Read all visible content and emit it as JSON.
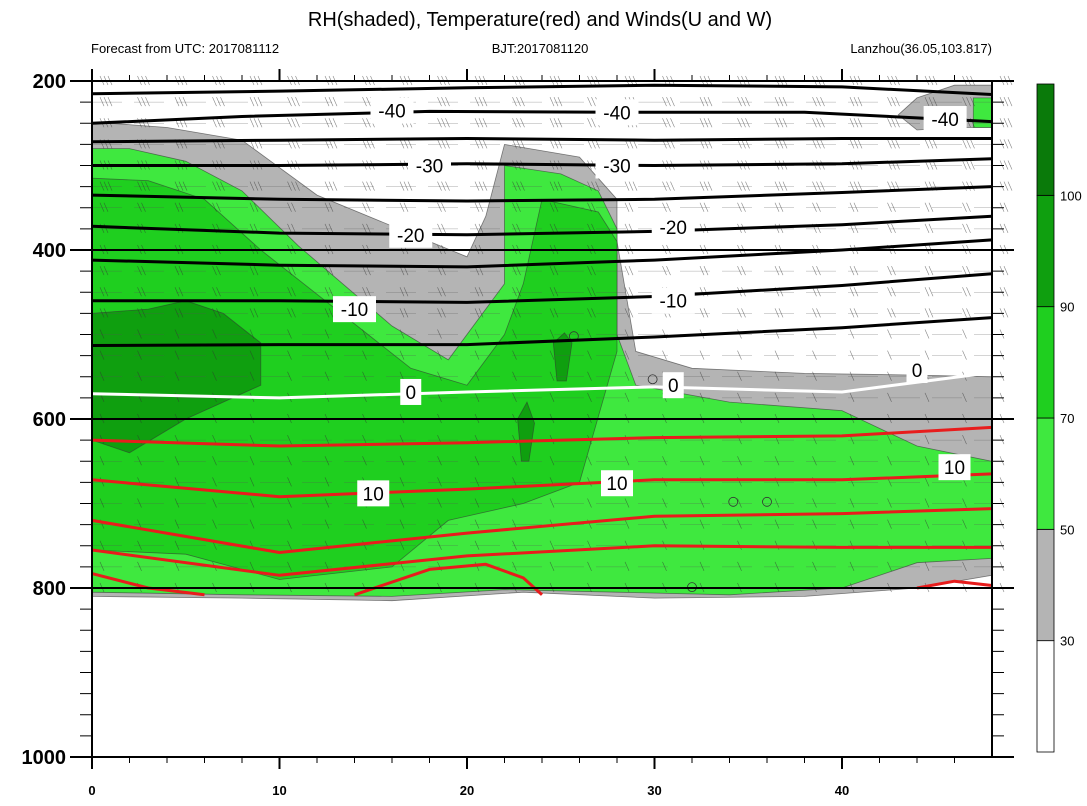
{
  "title": "RH(shaded), Temperature(red) and Winds(U and W)",
  "subtitle_left": "Forecast from UTC: 2017081112",
  "subtitle_center": "BJT:2017081120",
  "subtitle_right": "Lanzhou(36.05,103.817)",
  "colors": {
    "rh_30_50": "#b4b4b4",
    "rh_50_70": "#3fe83f",
    "rh_70_90": "#1fcf1f",
    "rh_90_100": "#0f9f0f",
    "rh_above_100": "#0a7a0a",
    "temp_above_0": "#e81c1c",
    "temp_zero": "#ffffff",
    "temp_below_0": "#000000"
  },
  "chart_data": {
    "type": "heatmap",
    "title": "RH(shaded), Temperature(red) and Winds(U and W)",
    "xlim": [
      0,
      48
    ],
    "ylim": [
      1000,
      200
    ],
    "x_ticks": [
      "0",
      "10",
      "20",
      "30",
      "40"
    ],
    "x_tick_values": [
      0,
      10,
      20,
      30,
      40
    ],
    "y_ticks": [
      "200",
      "400",
      "600",
      "800",
      "1000"
    ],
    "y_tick_values": [
      200,
      400,
      600,
      800,
      1000
    ],
    "colorbar": {
      "levels": [
        "30",
        "50",
        "70",
        "90",
        "100"
      ],
      "level_values": [
        30,
        50,
        70,
        90,
        100
      ],
      "colors": [
        "#ffffff",
        "#b4b4b4",
        "#3fe83f",
        "#1fcf1f",
        "#0f9f0f",
        "#0a7a0a"
      ]
    },
    "rh_regions": [
      {
        "name": "rh-30-50",
        "level": 30,
        "points": [
          [
            0,
            250
          ],
          [
            0,
            810
          ],
          [
            8,
            812
          ],
          [
            16,
            815
          ],
          [
            23,
            805
          ],
          [
            30,
            812
          ],
          [
            38,
            810
          ],
          [
            44,
            800
          ],
          [
            48,
            785
          ],
          [
            48,
            550
          ],
          [
            44,
            548
          ],
          [
            38,
            546
          ],
          [
            32,
            540
          ],
          [
            29,
            520
          ],
          [
            28,
            390
          ],
          [
            28,
            340
          ],
          [
            26,
            290
          ],
          [
            22,
            275
          ],
          [
            21,
            360
          ],
          [
            20,
            408
          ],
          [
            18,
            390
          ],
          [
            12,
            335
          ],
          [
            8,
            270
          ],
          [
            4,
            255
          ],
          [
            1,
            250
          ]
        ]
      },
      {
        "name": "rh-30-50-upper",
        "level": 30,
        "points": [
          [
            43,
            240
          ],
          [
            44,
            220
          ],
          [
            46,
            205
          ],
          [
            48,
            205
          ],
          [
            48,
            255
          ],
          [
            46,
            255
          ],
          [
            44,
            258
          ]
        ]
      },
      {
        "name": "rh-50-70",
        "level": 50,
        "points": [
          [
            0,
            280
          ],
          [
            0,
            805
          ],
          [
            8,
            808
          ],
          [
            16,
            810
          ],
          [
            22,
            802
          ],
          [
            28,
            805
          ],
          [
            34,
            808
          ],
          [
            40,
            800
          ],
          [
            44,
            770
          ],
          [
            48,
            765
          ],
          [
            48,
            650
          ],
          [
            44,
            632
          ],
          [
            40,
            590
          ],
          [
            34,
            580
          ],
          [
            29,
            560
          ],
          [
            28,
            500
          ],
          [
            28,
            375
          ],
          [
            27,
            330
          ],
          [
            25,
            310
          ],
          [
            22,
            300
          ],
          [
            22,
            440
          ],
          [
            19,
            530
          ],
          [
            16,
            490
          ],
          [
            11,
            395
          ],
          [
            8,
            330
          ],
          [
            5,
            295
          ],
          [
            2,
            280
          ]
        ]
      },
      {
        "name": "rh-50-70-upper",
        "level": 50,
        "points": [
          [
            47,
            220
          ],
          [
            48,
            220
          ],
          [
            48,
            255
          ],
          [
            47,
            255
          ]
        ]
      },
      {
        "name": "rh-70-90",
        "level": 70,
        "points": [
          [
            0,
            315
          ],
          [
            0,
            755
          ],
          [
            5,
            760
          ],
          [
            10,
            790
          ],
          [
            16,
            775
          ],
          [
            19,
            720
          ],
          [
            23,
            700
          ],
          [
            26,
            675
          ],
          [
            28,
            520
          ],
          [
            28,
            390
          ],
          [
            27,
            355
          ],
          [
            24,
            340
          ],
          [
            23,
            440
          ],
          [
            22,
            500
          ],
          [
            20,
            560
          ],
          [
            17,
            540
          ],
          [
            13,
            470
          ],
          [
            9,
            400
          ],
          [
            6,
            340
          ],
          [
            3,
            318
          ]
        ]
      },
      {
        "name": "rh-90-100-a",
        "level": 90,
        "points": [
          [
            0,
            475
          ],
          [
            0,
            625
          ],
          [
            2,
            640
          ],
          [
            5,
            600
          ],
          [
            9,
            560
          ],
          [
            9,
            510
          ],
          [
            7,
            475
          ],
          [
            5,
            460
          ],
          [
            3,
            470
          ]
        ]
      },
      {
        "name": "rh-90-100-b",
        "level": 90,
        "points": [
          [
            24.6,
            510
          ],
          [
            25.2,
            498
          ],
          [
            25.6,
            510
          ],
          [
            25.3,
            555
          ],
          [
            24.8,
            555
          ]
        ]
      },
      {
        "name": "rh-90-100-c",
        "level": 90,
        "points": [
          [
            22.7,
            600
          ],
          [
            23.2,
            580
          ],
          [
            23.6,
            605
          ],
          [
            23.3,
            650
          ],
          [
            22.9,
            650
          ]
        ]
      }
    ],
    "temperature_contours": [
      {
        "label": "-40",
        "value": -40,
        "points": [
          [
            0,
            215
          ],
          [
            10,
            212
          ],
          [
            20,
            208
          ],
          [
            30,
            205
          ],
          [
            40,
            207
          ],
          [
            48,
            216
          ]
        ]
      },
      {
        "label": "-40",
        "value": -40,
        "points": [
          [
            0,
            250
          ],
          [
            8,
            242
          ],
          [
            18,
            236
          ],
          [
            28,
            237
          ],
          [
            38,
            237
          ],
          [
            48,
            248
          ]
        ]
      },
      {
        "label": "-30",
        "value": -30,
        "points": [
          [
            0,
            272
          ],
          [
            10,
            270
          ],
          [
            20,
            268
          ],
          [
            30,
            270
          ],
          [
            40,
            268
          ],
          [
            48,
            268
          ]
        ]
      },
      {
        "label": "-30",
        "value": -30,
        "points": [
          [
            0,
            300
          ],
          [
            10,
            300
          ],
          [
            20,
            298
          ],
          [
            30,
            300
          ],
          [
            40,
            298
          ],
          [
            48,
            292
          ]
        ]
      },
      {
        "label": "-20",
        "value": -20,
        "points": [
          [
            0,
            335
          ],
          [
            10,
            340
          ],
          [
            20,
            342
          ],
          [
            30,
            340
          ],
          [
            40,
            332
          ],
          [
            48,
            325
          ]
        ]
      },
      {
        "label": "-20",
        "value": -20,
        "points": [
          [
            0,
            372
          ],
          [
            10,
            380
          ],
          [
            20,
            382
          ],
          [
            30,
            378
          ],
          [
            40,
            370
          ],
          [
            48,
            360
          ]
        ]
      },
      {
        "label": "-10",
        "value": -10,
        "points": [
          [
            0,
            412
          ],
          [
            10,
            418
          ],
          [
            20,
            420
          ],
          [
            30,
            412
          ],
          [
            40,
            400
          ],
          [
            48,
            388
          ]
        ]
      },
      {
        "label": "-10",
        "value": -10,
        "points": [
          [
            0,
            460
          ],
          [
            10,
            460
          ],
          [
            20,
            462
          ],
          [
            30,
            455
          ],
          [
            40,
            442
          ],
          [
            48,
            428
          ]
        ]
      },
      {
        "label": "-10",
        "value": -10,
        "points": [
          [
            0,
            513
          ],
          [
            10,
            512
          ],
          [
            20,
            512
          ],
          [
            30,
            503
          ],
          [
            40,
            492
          ],
          [
            48,
            480
          ]
        ]
      },
      {
        "label": "0",
        "value": 0,
        "points": [
          [
            0,
            570
          ],
          [
            10,
            575
          ],
          [
            20,
            568
          ],
          [
            30,
            562
          ],
          [
            40,
            568
          ],
          [
            48,
            545
          ]
        ]
      },
      {
        "label": "10",
        "value": 10,
        "points": [
          [
            0,
            625
          ],
          [
            10,
            632
          ],
          [
            20,
            628
          ],
          [
            30,
            622
          ],
          [
            40,
            620
          ],
          [
            48,
            610
          ]
        ]
      },
      {
        "label": "10",
        "value": 10,
        "points": [
          [
            0,
            672
          ],
          [
            10,
            692
          ],
          [
            20,
            683
          ],
          [
            30,
            672
          ],
          [
            40,
            672
          ],
          [
            48,
            665
          ]
        ]
      },
      {
        "label": "10",
        "value": 10,
        "points": [
          [
            0,
            720
          ],
          [
            10,
            758
          ],
          [
            20,
            735
          ],
          [
            30,
            715
          ],
          [
            40,
            712
          ],
          [
            48,
            706
          ]
        ]
      },
      {
        "label": "10",
        "value": 10,
        "points": [
          [
            0,
            755
          ],
          [
            10,
            785
          ],
          [
            20,
            762
          ],
          [
            30,
            750
          ],
          [
            40,
            752
          ],
          [
            48,
            752
          ]
        ]
      },
      {
        "label": "10",
        "value": 10,
        "points": [
          [
            0,
            783
          ],
          [
            3,
            800
          ],
          [
            6,
            808
          ]
        ]
      },
      {
        "label": "10",
        "value": 10,
        "points": [
          [
            14,
            808
          ],
          [
            18,
            778
          ],
          [
            21,
            772
          ],
          [
            23,
            788
          ],
          [
            24,
            808
          ]
        ]
      },
      {
        "label": "10",
        "value": 10,
        "points": [
          [
            44,
            800
          ],
          [
            46,
            792
          ],
          [
            48,
            797
          ]
        ]
      }
    ],
    "contour_labels": [
      {
        "label": "-40",
        "x": 16,
        "y": 235
      },
      {
        "label": "-40",
        "x": 28,
        "y": 237
      },
      {
        "label": "-40",
        "x": 45.5,
        "y": 245
      },
      {
        "label": "-30",
        "x": 18,
        "y": 300
      },
      {
        "label": "-30",
        "x": 28,
        "y": 300
      },
      {
        "label": "-20",
        "x": 17,
        "y": 382
      },
      {
        "label": "-20",
        "x": 31,
        "y": 373
      },
      {
        "label": "-10",
        "x": 14,
        "y": 470
      },
      {
        "label": "-10",
        "x": 31,
        "y": 460
      },
      {
        "label": "0",
        "x": 17,
        "y": 568
      },
      {
        "label": "0",
        "x": 31,
        "y": 560
      },
      {
        "label": "0",
        "x": 44,
        "y": 542
      },
      {
        "label": "10",
        "x": 15,
        "y": 688
      },
      {
        "label": "10",
        "x": 28,
        "y": 676
      },
      {
        "label": "10",
        "x": 46,
        "y": 657
      }
    ]
  }
}
